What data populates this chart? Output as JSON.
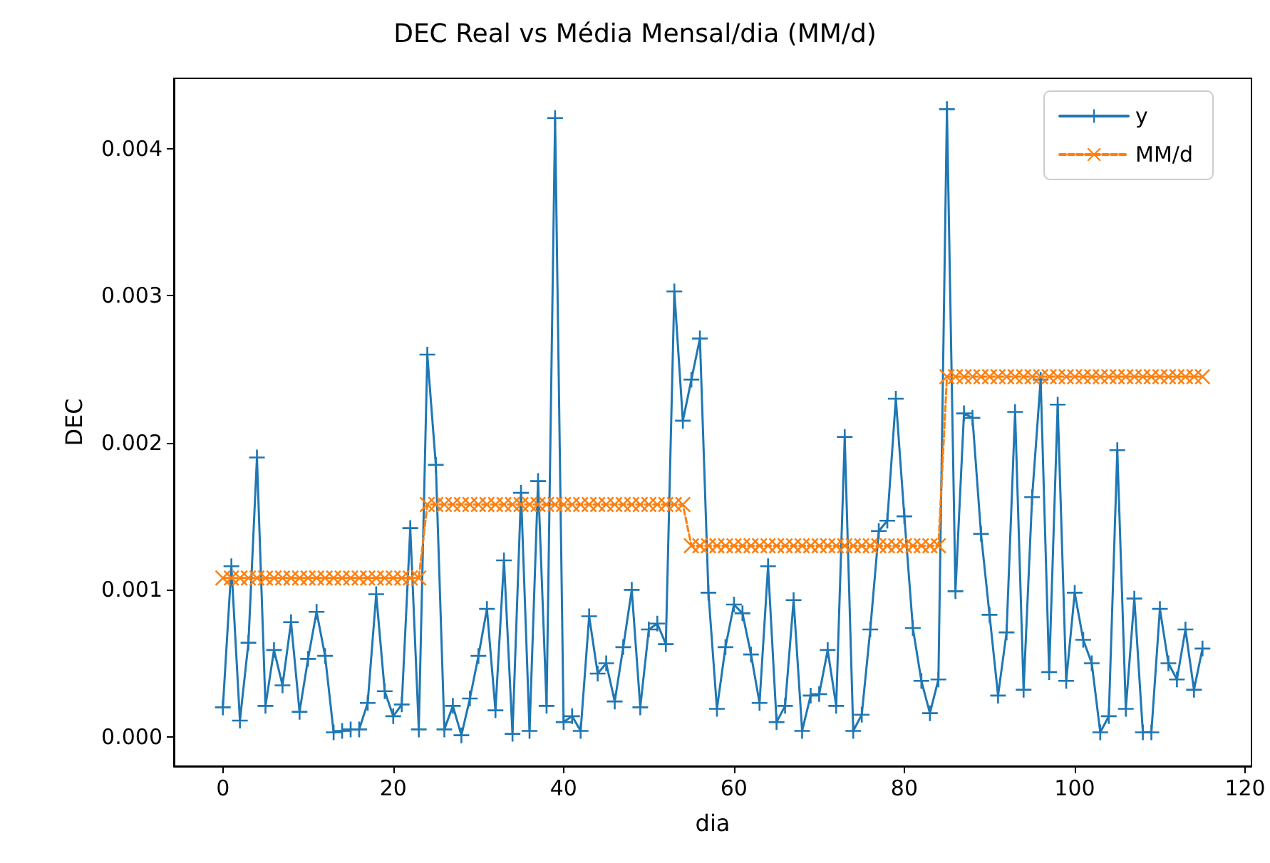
{
  "chart_data": {
    "type": "line",
    "title": "DEC Real vs Média Mensal/dia (MM/d)",
    "xlabel": "dia",
    "ylabel": "DEC",
    "x": [
      0,
      1,
      2,
      3,
      4,
      5,
      6,
      7,
      8,
      9,
      10,
      11,
      12,
      13,
      14,
      15,
      16,
      17,
      18,
      19,
      20,
      21,
      22,
      23,
      24,
      25,
      26,
      27,
      28,
      29,
      30,
      31,
      32,
      33,
      34,
      35,
      36,
      37,
      38,
      39,
      40,
      41,
      42,
      43,
      44,
      45,
      46,
      47,
      48,
      49,
      50,
      51,
      52,
      53,
      54,
      55,
      56,
      57,
      58,
      59,
      60,
      61,
      62,
      63,
      64,
      65,
      66,
      67,
      68,
      69,
      70,
      71,
      72,
      73,
      74,
      75,
      76,
      77,
      78,
      79,
      80,
      81,
      82,
      83,
      84,
      85,
      86,
      87,
      88,
      89,
      90,
      91,
      92,
      93,
      94,
      95,
      96,
      97,
      98,
      99,
      100,
      101,
      102,
      103,
      104,
      105,
      106,
      107,
      108,
      109,
      110,
      111,
      112,
      113,
      114,
      115
    ],
    "series": [
      {
        "name": "y",
        "color": "#1f77b4",
        "marker": "plus",
        "line_style": "solid",
        "values": [
          0.0002,
          0.00116,
          0.00011,
          0.00064,
          0.0019,
          0.00021,
          0.00059,
          0.00035,
          0.00078,
          0.00017,
          0.00053,
          0.00085,
          0.00055,
          3e-05,
          4e-05,
          5e-05,
          5e-05,
          0.00023,
          0.00097,
          0.00031,
          0.00014,
          0.00022,
          0.00142,
          5e-05,
          0.0026,
          0.00185,
          5e-05,
          0.00021,
          1e-05,
          0.00026,
          0.00055,
          0.00087,
          0.00018,
          0.0012,
          2e-05,
          0.00166,
          4e-05,
          0.00174,
          0.00021,
          0.00421,
          0.0001,
          0.00014,
          4e-05,
          0.00082,
          0.00043,
          0.0005,
          0.00024,
          0.00061,
          0.001,
          0.0002,
          0.00073,
          0.00077,
          0.00063,
          0.00303,
          0.00215,
          0.00243,
          0.00271,
          0.00098,
          0.00019,
          0.00061,
          0.0009,
          0.00084,
          0.00056,
          0.00023,
          0.00116,
          0.0001,
          0.00021,
          0.00093,
          4e-05,
          0.00028,
          0.00029,
          0.00059,
          0.00021,
          0.00204,
          4e-05,
          0.00015,
          0.00073,
          0.0014,
          0.00147,
          0.0023,
          0.0015,
          0.00074,
          0.00038,
          0.00016,
          0.00039,
          0.00427,
          0.00099,
          0.0022,
          0.00217,
          0.00138,
          0.00083,
          0.00028,
          0.00071,
          0.00221,
          0.00032,
          0.00163,
          0.00243,
          0.00044,
          0.00226,
          0.00038,
          0.00098,
          0.00066,
          0.0005,
          3e-05,
          0.00014,
          0.00195,
          0.00019,
          0.00094,
          3e-05,
          3e-05,
          0.00087,
          0.0005,
          0.00039,
          0.00073,
          0.00032,
          0.0006
        ]
      },
      {
        "name": "MM/d",
        "color": "#ff7f0e",
        "marker": "cross",
        "line_style": "dashed",
        "values": [
          0.00108,
          0.00108,
          0.00108,
          0.00108,
          0.00108,
          0.00108,
          0.00108,
          0.00108,
          0.00108,
          0.00108,
          0.00108,
          0.00108,
          0.00108,
          0.00108,
          0.00108,
          0.00108,
          0.00108,
          0.00108,
          0.00108,
          0.00108,
          0.00108,
          0.00108,
          0.00108,
          0.00108,
          0.00158,
          0.00158,
          0.00158,
          0.00158,
          0.00158,
          0.00158,
          0.00158,
          0.00158,
          0.00158,
          0.00158,
          0.00158,
          0.00158,
          0.00158,
          0.00158,
          0.00158,
          0.00158,
          0.00158,
          0.00158,
          0.00158,
          0.00158,
          0.00158,
          0.00158,
          0.00158,
          0.00158,
          0.00158,
          0.00158,
          0.00158,
          0.00158,
          0.00158,
          0.00158,
          0.00158,
          0.0013,
          0.0013,
          0.0013,
          0.0013,
          0.0013,
          0.0013,
          0.0013,
          0.0013,
          0.0013,
          0.0013,
          0.0013,
          0.0013,
          0.0013,
          0.0013,
          0.0013,
          0.0013,
          0.0013,
          0.0013,
          0.0013,
          0.0013,
          0.0013,
          0.0013,
          0.0013,
          0.0013,
          0.0013,
          0.0013,
          0.0013,
          0.0013,
          0.0013,
          0.0013,
          0.00245,
          0.00245,
          0.00245,
          0.00245,
          0.00245,
          0.00245,
          0.00245,
          0.00245,
          0.00245,
          0.00245,
          0.00245,
          0.00245,
          0.00245,
          0.00245,
          0.00245,
          0.00245,
          0.00245,
          0.00245,
          0.00245,
          0.00245,
          0.00245,
          0.00245,
          0.00245,
          0.00245,
          0.00245,
          0.00245,
          0.00245,
          0.00245,
          0.00245,
          0.00245,
          0.00245
        ]
      }
    ],
    "xlim": [
      -5.75,
      120.75
    ],
    "xticks": [
      0,
      20,
      40,
      60,
      80,
      100,
      120
    ],
    "ylim": [
      -0.0002,
      0.00448
    ],
    "yticks": [
      {
        "value": 0,
        "label": "0.000"
      },
      {
        "value": 0.001,
        "label": "0.001"
      },
      {
        "value": 0.002,
        "label": "0.002"
      },
      {
        "value": 0.003,
        "label": "0.003"
      },
      {
        "value": 0.004,
        "label": "0.004"
      }
    ],
    "grid": false,
    "legend": "top right"
  }
}
